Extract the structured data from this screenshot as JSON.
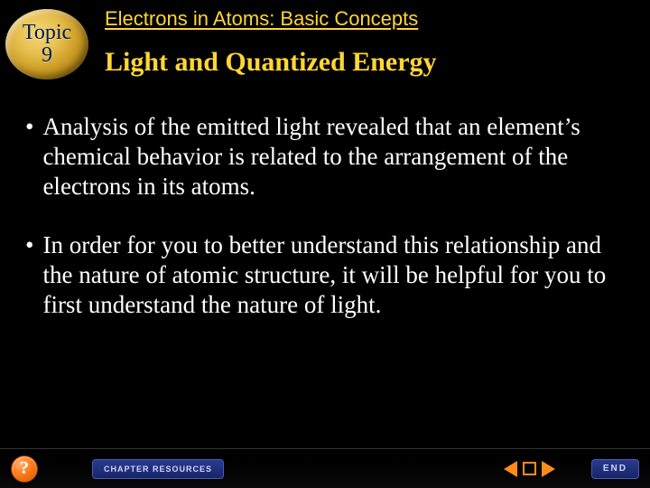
{
  "colors": {
    "background": "#000000",
    "heading_text": "#ffd633",
    "body_text": "#ffffff",
    "topic_badge_text": "#001a55",
    "nav_button_accent": "#ff8c1a",
    "footer_button_bg": "#172566",
    "footer_button_text": "#cfd6ff"
  },
  "typography": {
    "chapter_title_pt": 22,
    "section_title_pt": 30,
    "body_pt": 27,
    "topic_badge_pt": 24,
    "footer_label_pt": 10
  },
  "topic_badge": {
    "line1": "Topic",
    "line2": "9"
  },
  "chapter_title": "Electrons in Atoms: Basic Concepts",
  "section_title": "Light and Quantized Energy",
  "bullets": [
    "Analysis of the emitted light revealed that an element’s chemical behavior is related to the arrangement of the electrons in its atoms.",
    "In order for you to better understand this relationship and the nature of atomic structure, it will be helpful for you to first understand the nature of light."
  ],
  "footer": {
    "help_label": "?",
    "resources_label": "CHAPTER RESOURCES",
    "end_label": "END"
  }
}
